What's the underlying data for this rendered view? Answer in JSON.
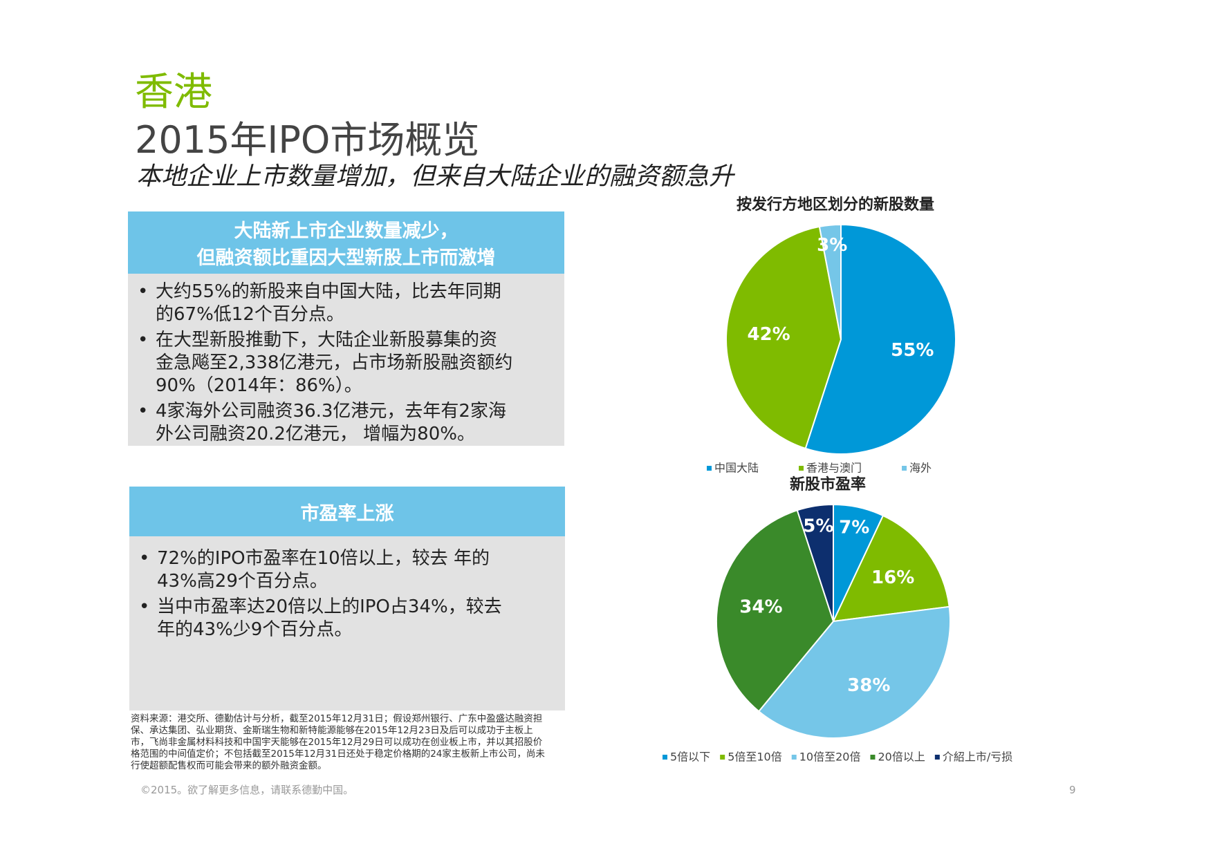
{
  "header": {
    "region": "香港",
    "title": "2015年IPO市场概览",
    "subtitle": "本地企业上市数量增加，但来自大陆企业的融资额急升"
  },
  "panels": [
    {
      "title_lines": [
        "大陆新上市企业数量减少，",
        "但融资额比重因大型新股上市而激增"
      ],
      "bullets": [
        [
          "大约55%的新股来自中国大陆，比去年同期",
          "的67%低12个百分点。"
        ],
        [
          "在大型新股推動下，大陆企业新股募集的资",
          "金急飚至2,338亿港元，占市场新股融资额约",
          "90%（2014年：86%）。"
        ],
        [
          "4家海外公司融资36.3亿港元，去年有2家海",
          "外公司融资20.2亿港元，  增幅为80%。"
        ]
      ]
    },
    {
      "title_lines": [
        "市盈率上涨"
      ],
      "bullets": [
        [
          "72%的IPO市盈率在10倍以上，较去 年的",
          "43%高29个百分点。"
        ],
        [
          "当中市盈率达20倍以上的IPO占34%，较去",
          "年的43%少9个百分点。"
        ]
      ]
    }
  ],
  "source": [
    "资料来源：港交所、德勤估计与分析，截至2015年12月31日；假设郑州银行、广东中盈盛达融资担",
    "保、承达集团、弘业期货、金斯瑞生物和新特能源能够在2015年12月23日及后可以成功于主板上",
    "市，飞尚非金属材料科技和中国宇天能够在2015年12月29日可以成功在创业板上市，并以其招股价",
    "格范围的中间值定价；不包括截至2015年12月31日还处于稳定价格期的24家主板新上市公司，尚未",
    "行使超额配售权而可能会带来的额外融资金额。"
  ],
  "footer": {
    "copyright": "©2015。欲了解更多信息，请联系德勤中国。",
    "page": "9"
  },
  "chart_data": [
    {
      "type": "pie",
      "title": "按发行方地区划分的新股数量",
      "categories": [
        "中国大陆",
        "香港与澳门",
        "海外"
      ],
      "values": [
        55,
        42,
        3
      ],
      "value_labels": [
        "55%",
        "42%",
        "3%"
      ],
      "colors": [
        "#0098d8",
        "#7fbb00",
        "#75c6e8"
      ],
      "legend": "bottom"
    },
    {
      "type": "pie",
      "title": "新股市盈率",
      "categories": [
        "5倍以下",
        "5倍至10倍",
        "10倍至20倍",
        "20倍以上",
        "介紹上市/亏损"
      ],
      "values": [
        7,
        16,
        38,
        34,
        5
      ],
      "value_labels": [
        "7%",
        "16%",
        "38%",
        "34%",
        "5%"
      ],
      "colors": [
        "#0098d8",
        "#7fbb00",
        "#75c6e8",
        "#3a8a2a",
        "#0d2f6e"
      ],
      "legend": "bottom"
    }
  ]
}
